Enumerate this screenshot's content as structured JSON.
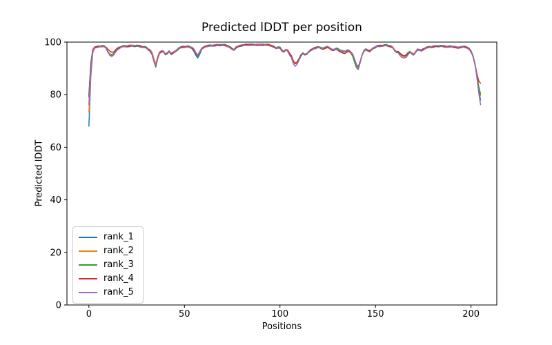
{
  "chart_data": {
    "type": "line",
    "title": "Predicted lDDT per position",
    "xlabel": "Positions",
    "ylabel": "Predicted lDDT",
    "xlim": [
      -11.5,
      213.5
    ],
    "ylim": [
      0,
      100
    ],
    "xticks": [
      0,
      50,
      100,
      150,
      200
    ],
    "yticks": [
      0,
      20,
      40,
      60,
      80,
      100
    ],
    "grid": false,
    "legend": {
      "position": "lower left",
      "entries": [
        "rank_1",
        "rank_2",
        "rank_3",
        "rank_4",
        "rank_5"
      ]
    },
    "x_range": [
      0,
      205
    ],
    "base_curve": [
      [
        0,
        75
      ],
      [
        1,
        90
      ],
      [
        2,
        96.5
      ],
      [
        3,
        97.8
      ],
      [
        5,
        98.4
      ],
      [
        8,
        98.4
      ],
      [
        9,
        97.8
      ],
      [
        10,
        96.3
      ],
      [
        11,
        95.2
      ],
      [
        12,
        95.1
      ],
      [
        13,
        95.6
      ],
      [
        14,
        96.6
      ],
      [
        15,
        97.5
      ],
      [
        17,
        98.3
      ],
      [
        20,
        98.5
      ],
      [
        23,
        98.6
      ],
      [
        26,
        98.5
      ],
      [
        28,
        98.2
      ],
      [
        30,
        97.9
      ],
      [
        32,
        96.8
      ],
      [
        33,
        95.5
      ],
      [
        34,
        92.8
      ],
      [
        35,
        90.8
      ],
      [
        36,
        93.8
      ],
      [
        37,
        95.8
      ],
      [
        38,
        96.4
      ],
      [
        39,
        96.5
      ],
      [
        40,
        95.3
      ],
      [
        41,
        95.6
      ],
      [
        42,
        96.6
      ],
      [
        43,
        95.6
      ],
      [
        44,
        95.9
      ],
      [
        45,
        96.3
      ],
      [
        46,
        97.0
      ],
      [
        47,
        97.6
      ],
      [
        49,
        98.1
      ],
      [
        52,
        98.3
      ],
      [
        54,
        97.9
      ],
      [
        55,
        97.1
      ],
      [
        56,
        95.7
      ],
      [
        57,
        94.9
      ],
      [
        58,
        96.2
      ],
      [
        59,
        97.4
      ],
      [
        61,
        98.4
      ],
      [
        64,
        98.7
      ],
      [
        68,
        98.9
      ],
      [
        71,
        98.8
      ],
      [
        73,
        98.4
      ],
      [
        75,
        97.4
      ],
      [
        76,
        97.1
      ],
      [
        77,
        98.0
      ],
      [
        79,
        98.6
      ],
      [
        82,
        98.9
      ],
      [
        86,
        99.0
      ],
      [
        90,
        99.0
      ],
      [
        94,
        98.9
      ],
      [
        97,
        98.2
      ],
      [
        98,
        97.7
      ],
      [
        99,
        98.0
      ],
      [
        100,
        97.9
      ],
      [
        101,
        96.9
      ],
      [
        102,
        96.4
      ],
      [
        103,
        97.0
      ],
      [
        104,
        96.8
      ],
      [
        105,
        95.6
      ],
      [
        106,
        94.6
      ],
      [
        107,
        92.6
      ],
      [
        108,
        91.8
      ],
      [
        109,
        92.4
      ],
      [
        110,
        93.6
      ],
      [
        111,
        95.0
      ],
      [
        112,
        95.8
      ],
      [
        113,
        95.3
      ],
      [
        114,
        95.4
      ],
      [
        115,
        96.2
      ],
      [
        116,
        96.9
      ],
      [
        118,
        97.6
      ],
      [
        120,
        98.2
      ],
      [
        121,
        97.9
      ],
      [
        122,
        97.5
      ],
      [
        124,
        98.0
      ],
      [
        125,
        98.1
      ],
      [
        126,
        97.7
      ],
      [
        127,
        97.2
      ],
      [
        128,
        97.0
      ],
      [
        129,
        97.4
      ],
      [
        130,
        97.5
      ],
      [
        131,
        97.1
      ],
      [
        132,
        96.7
      ],
      [
        133,
        96.4
      ],
      [
        134,
        96.4
      ],
      [
        135,
        96.8
      ],
      [
        136,
        96.7
      ],
      [
        137,
        96.1
      ],
      [
        138,
        95.4
      ],
      [
        139,
        93.5
      ],
      [
        140,
        91.3
      ],
      [
        141,
        90.3
      ],
      [
        142,
        92.6
      ],
      [
        143,
        95.2
      ],
      [
        144,
        96.6
      ],
      [
        145,
        97.3
      ],
      [
        146,
        96.9
      ],
      [
        147,
        96.6
      ],
      [
        148,
        97.1
      ],
      [
        149,
        97.8
      ],
      [
        151,
        98.4
      ],
      [
        154,
        98.7
      ],
      [
        156,
        98.8
      ],
      [
        158,
        98.4
      ],
      [
        159,
        97.9
      ],
      [
        160,
        96.9
      ],
      [
        161,
        96.3
      ],
      [
        162,
        96.1
      ],
      [
        163,
        95.4
      ],
      [
        164,
        94.9
      ],
      [
        165,
        94.7
      ],
      [
        166,
        94.8
      ],
      [
        167,
        95.8
      ],
      [
        168,
        96.4
      ],
      [
        169,
        95.8
      ],
      [
        170,
        95.2
      ],
      [
        171,
        96.2
      ],
      [
        172,
        97.3
      ],
      [
        173,
        96.9
      ],
      [
        174,
        96.7
      ],
      [
        175,
        97.2
      ],
      [
        176,
        97.7
      ],
      [
        178,
        98.1
      ],
      [
        181,
        98.4
      ],
      [
        184,
        98.5
      ],
      [
        186,
        98.3
      ],
      [
        188,
        98.2
      ],
      [
        190,
        98.4
      ],
      [
        192,
        98.1
      ],
      [
        193,
        97.8
      ],
      [
        194,
        98.0
      ],
      [
        196,
        98.2
      ],
      [
        198,
        97.9
      ],
      [
        199,
        97.4
      ],
      [
        200,
        96.4
      ],
      [
        201,
        94.8
      ],
      [
        202,
        92.0
      ],
      [
        203,
        87.5
      ],
      [
        204,
        82.5
      ],
      [
        205,
        79.0
      ]
    ],
    "series": [
      {
        "name": "rank_1",
        "color": "#1f77b4",
        "start_value": 68,
        "end_value": 78,
        "dips": [
          {
            "pos": 57,
            "depth": 1.0,
            "width": 1.5
          }
        ]
      },
      {
        "name": "rank_2",
        "color": "#ff7f0e",
        "start_value": 73,
        "end_value": 79.5,
        "dips": [
          {
            "pos": 35,
            "depth": -0.8,
            "width": 2
          }
        ]
      },
      {
        "name": "rank_3",
        "color": "#2ca02c",
        "start_value": 80,
        "end_value": 80.5,
        "dips": [
          {
            "pos": 140,
            "depth": 1.0,
            "width": 1.5
          }
        ]
      },
      {
        "name": "rank_4",
        "color": "#d62728",
        "start_value": 79,
        "end_value": 84.5,
        "dips": [
          {
            "pos": 11,
            "depth": -1.3,
            "width": 1.5
          },
          {
            "pos": 131,
            "depth": 0.6,
            "width": 4
          }
        ]
      },
      {
        "name": "rank_5",
        "color": "#9467bd",
        "start_value": 76,
        "end_value": 76,
        "dips": [
          {
            "pos": 12,
            "depth": 0.6,
            "width": 2
          },
          {
            "pos": 108,
            "depth": 0.7,
            "width": 3
          },
          {
            "pos": 165,
            "depth": 0.6,
            "width": 3
          }
        ]
      }
    ]
  }
}
